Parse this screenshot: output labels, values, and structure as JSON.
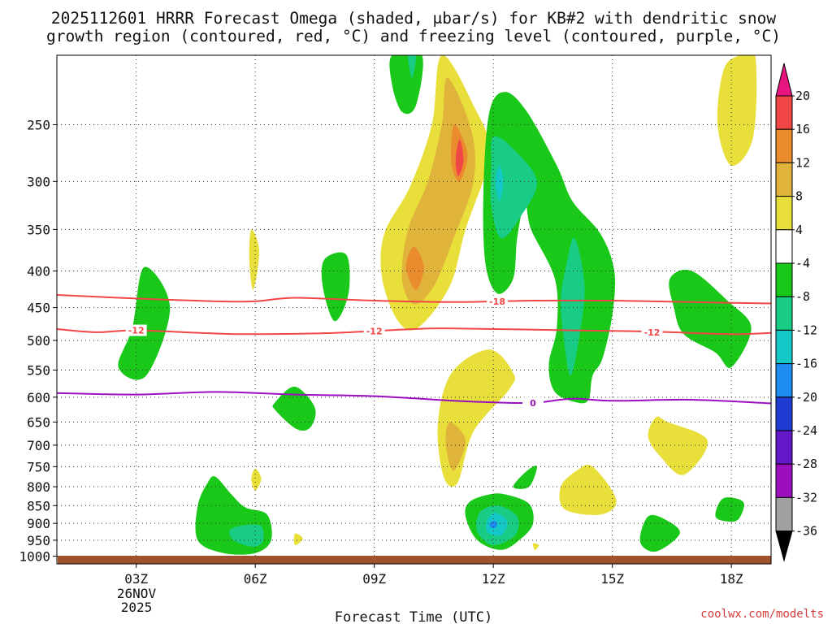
{
  "header": {
    "title_line1": "2025112601 HRRR Forecast Omega (shaded, μbar/s) for KB#2 with dendritic snow",
    "title_line2": "growth region (contoured, red, °C) and freezing level (contoured, purple, °C)"
  },
  "footer": {
    "xlabel": "Forecast Time (UTC)",
    "credit": "coolwx.com/modelts",
    "date_line1": "26NOV",
    "date_line2": "2025"
  },
  "chart_data": {
    "type": "heatmap",
    "title": "2025112601 HRRR Forecast Omega (shaded, μbar/s) for KB#2 with dendritic snow growth region (contoured, red, °C) and freezing level (contoured, purple, °C)",
    "xlabel": "Forecast Time (UTC)",
    "ylabel": "",
    "x_range_hours_utc": [
      1,
      19
    ],
    "x_ticks": [
      {
        "hour": 3,
        "label": "03Z"
      },
      {
        "hour": 6,
        "label": "06Z"
      },
      {
        "hour": 9,
        "label": "09Z"
      },
      {
        "hour": 12,
        "label": "12Z"
      },
      {
        "hour": 15,
        "label": "15Z"
      },
      {
        "hour": 18,
        "label": "18Z"
      }
    ],
    "y_axis": {
      "scale": "log",
      "range_mb": [
        200,
        1025
      ],
      "inverted": true
    },
    "y_ticks": [
      250,
      300,
      350,
      400,
      450,
      500,
      550,
      600,
      650,
      700,
      750,
      800,
      850,
      900,
      950,
      1000
    ],
    "grid": true,
    "colorbar": {
      "labels": [
        "20",
        "16",
        "12",
        "8",
        "4",
        "-4",
        "-8",
        "-12",
        "-16",
        "-20",
        "-24",
        "-28",
        "-32",
        "-36"
      ],
      "colors": [
        "#e7157f",
        "#f04646",
        "#ea8c2e",
        "#e0b43a",
        "#e8df3a",
        "#ffffff",
        "#19c819",
        "#19cc85",
        "#14c8c8",
        "#1e8cf0",
        "#1e3cd2",
        "#6419c8",
        "#9b0fbe",
        "#a0a0a0",
        "#000000"
      ]
    },
    "regions": [
      {
        "level": "4",
        "color": "#e8df3a",
        "points": [
          [
            10.7,
            200
          ],
          [
            11.5,
            235
          ],
          [
            11.9,
            275
          ],
          [
            11.3,
            350
          ],
          [
            10.9,
            420
          ],
          [
            10.1,
            480
          ],
          [
            9.6,
            470
          ],
          [
            9.2,
            410
          ],
          [
            9.25,
            355
          ],
          [
            9.9,
            305
          ],
          [
            10.45,
            250
          ]
        ]
      },
      {
        "level": "8",
        "color": "#e0b43a",
        "points": [
          [
            10.85,
            215
          ],
          [
            11.45,
            255
          ],
          [
            11.5,
            300
          ],
          [
            11.0,
            360
          ],
          [
            10.5,
            420
          ],
          [
            10.0,
            445
          ],
          [
            9.7,
            410
          ],
          [
            9.85,
            350
          ],
          [
            10.35,
            300
          ],
          [
            10.7,
            250
          ]
        ]
      },
      {
        "level": "12",
        "color": "#ea8c2e",
        "points": [
          [
            11.05,
            250
          ],
          [
            11.35,
            275
          ],
          [
            11.15,
            300
          ],
          [
            10.95,
            285
          ],
          [
            10.95,
            260
          ]
        ]
      },
      {
        "level": "12",
        "color": "#ea8c2e",
        "points": [
          [
            10.0,
            370
          ],
          [
            10.25,
            395
          ],
          [
            10.05,
            425
          ],
          [
            9.8,
            395
          ]
        ]
      },
      {
        "level": "16",
        "color": "#f04646",
        "points": [
          [
            11.15,
            262
          ],
          [
            11.25,
            280
          ],
          [
            11.12,
            295
          ],
          [
            11.05,
            280
          ]
        ]
      },
      {
        "level": "-4",
        "color": "#19c819",
        "points": [
          [
            9.45,
            200
          ],
          [
            10.2,
            200
          ],
          [
            10.05,
            235
          ],
          [
            9.7,
            240
          ],
          [
            9.45,
            220
          ]
        ]
      },
      {
        "level": "-8",
        "color": "#19cc85",
        "points": [
          [
            9.85,
            200
          ],
          [
            10.05,
            200
          ],
          [
            9.95,
            215
          ]
        ]
      },
      {
        "level": "-4",
        "color": "#19c819",
        "points": [
          [
            11.9,
            240
          ],
          [
            12.3,
            225
          ],
          [
            12.85,
            240
          ],
          [
            13.6,
            285
          ],
          [
            14.0,
            320
          ],
          [
            14.7,
            355
          ],
          [
            15.05,
            400
          ],
          [
            15.0,
            460
          ],
          [
            14.75,
            530
          ],
          [
            14.5,
            560
          ],
          [
            14.4,
            605
          ],
          [
            14.1,
            610
          ],
          [
            13.55,
            590
          ],
          [
            13.4,
            540
          ],
          [
            13.6,
            480
          ],
          [
            13.55,
            410
          ],
          [
            12.95,
            350
          ],
          [
            12.8,
            320
          ],
          [
            12.6,
            360
          ],
          [
            12.5,
            410
          ],
          [
            12.1,
            430
          ],
          [
            11.8,
            390
          ],
          [
            11.75,
            310
          ]
        ]
      },
      {
        "level": "-8",
        "color": "#19cc85",
        "points": [
          [
            12.0,
            260
          ],
          [
            12.5,
            270
          ],
          [
            13.1,
            300
          ],
          [
            12.7,
            335
          ],
          [
            12.2,
            360
          ],
          [
            11.95,
            325
          ],
          [
            11.95,
            285
          ]
        ]
      },
      {
        "level": "-12",
        "color": "#14c8c8",
        "points": [
          [
            12.15,
            285
          ],
          [
            12.25,
            300
          ],
          [
            12.15,
            320
          ],
          [
            12.05,
            300
          ]
        ]
      },
      {
        "level": "-8",
        "color": "#19cc85",
        "points": [
          [
            14.05,
            360
          ],
          [
            14.3,
            420
          ],
          [
            14.15,
            500
          ],
          [
            13.95,
            560
          ],
          [
            13.8,
            510
          ],
          [
            13.7,
            440
          ],
          [
            13.85,
            390
          ]
        ]
      },
      {
        "level": "-4",
        "color": "#19c819",
        "points": [
          [
            2.55,
            545
          ],
          [
            2.9,
            480
          ],
          [
            3.2,
            395
          ],
          [
            3.85,
            450
          ],
          [
            3.25,
            560
          ]
        ]
      },
      {
        "level": "4",
        "color": "#e8df3a",
        "points": [
          [
            5.9,
            350
          ],
          [
            6.1,
            375
          ],
          [
            5.95,
            425
          ],
          [
            5.85,
            385
          ]
        ]
      },
      {
        "level": "-4",
        "color": "#19c819",
        "points": [
          [
            7.75,
            385
          ],
          [
            8.3,
            380
          ],
          [
            8.35,
            430
          ],
          [
            8.0,
            470
          ],
          [
            7.7,
            420
          ]
        ]
      },
      {
        "level": "-4",
        "color": "#19c819",
        "points": [
          [
            6.5,
            610
          ],
          [
            7.0,
            580
          ],
          [
            7.5,
            620
          ],
          [
            7.4,
            660
          ],
          [
            7.05,
            665
          ],
          [
            6.5,
            625
          ]
        ]
      },
      {
        "level": "4",
        "color": "#e8df3a",
        "points": [
          [
            11.9,
            515
          ],
          [
            12.5,
            555
          ],
          [
            12.4,
            585
          ],
          [
            11.5,
            670
          ],
          [
            11.1,
            790
          ],
          [
            10.75,
            775
          ],
          [
            10.6,
            655
          ],
          [
            10.95,
            555
          ]
        ]
      },
      {
        "level": "8",
        "color": "#e0b43a",
        "points": [
          [
            10.9,
            650
          ],
          [
            11.3,
            690
          ],
          [
            11.0,
            760
          ],
          [
            10.8,
            700
          ]
        ]
      },
      {
        "level": "-4",
        "color": "#19c819",
        "points": [
          [
            12.85,
            760
          ],
          [
            13.1,
            750
          ],
          [
            12.9,
            800
          ],
          [
            12.5,
            800
          ]
        ]
      },
      {
        "level": "4",
        "color": "#e8df3a",
        "points": [
          [
            14.1,
            760
          ],
          [
            14.5,
            750
          ],
          [
            15.1,
            835
          ],
          [
            14.7,
            875
          ],
          [
            13.8,
            860
          ],
          [
            13.7,
            800
          ]
        ]
      },
      {
        "level": "4",
        "color": "#e8df3a",
        "points": [
          [
            16.1,
            640
          ],
          [
            16.4,
            650
          ],
          [
            17.4,
            690
          ],
          [
            16.8,
            770
          ],
          [
            16.2,
            725
          ],
          [
            15.9,
            680
          ]
        ]
      },
      {
        "level": "-4",
        "color": "#19c819",
        "points": [
          [
            5.0,
            775
          ],
          [
            5.4,
            820
          ],
          [
            5.75,
            855
          ],
          [
            6.3,
            875
          ],
          [
            6.4,
            950
          ],
          [
            6.0,
            990
          ],
          [
            5.2,
            990
          ],
          [
            4.55,
            950
          ],
          [
            4.55,
            850
          ],
          [
            4.8,
            790
          ]
        ]
      },
      {
        "level": "-8",
        "color": "#19cc85",
        "points": [
          [
            5.4,
            915
          ],
          [
            6.1,
            905
          ],
          [
            6.2,
            950
          ],
          [
            5.95,
            970
          ],
          [
            5.45,
            950
          ]
        ]
      },
      {
        "level": "4",
        "color": "#e8df3a",
        "points": [
          [
            6.0,
            755
          ],
          [
            6.15,
            780
          ],
          [
            6.0,
            810
          ],
          [
            5.9,
            780
          ]
        ]
      },
      {
        "level": "4",
        "color": "#e8df3a",
        "points": [
          [
            7.0,
            930
          ],
          [
            7.2,
            945
          ],
          [
            7.0,
            965
          ]
        ]
      },
      {
        "level": "-4",
        "color": "#19c819",
        "points": [
          [
            12.3,
            820
          ],
          [
            12.9,
            845
          ],
          [
            13.0,
            900
          ],
          [
            12.7,
            945
          ],
          [
            12.2,
            980
          ],
          [
            11.6,
            950
          ],
          [
            11.3,
            880
          ],
          [
            11.4,
            840
          ],
          [
            11.9,
            820
          ]
        ]
      },
      {
        "level": "-8",
        "color": "#19cc85",
        "points": [
          [
            12.1,
            850
          ],
          [
            12.6,
            880
          ],
          [
            12.55,
            935
          ],
          [
            12.0,
            965
          ],
          [
            11.6,
            925
          ],
          [
            11.65,
            870
          ]
        ]
      },
      {
        "level": "-12",
        "color": "#14c8c8",
        "points": [
          [
            12.05,
            870
          ],
          [
            12.35,
            895
          ],
          [
            12.2,
            935
          ],
          [
            11.85,
            925
          ],
          [
            11.85,
            890
          ]
        ]
      },
      {
        "level": "-16",
        "color": "#1e8cf0",
        "points": [
          [
            11.95,
            895
          ],
          [
            12.05,
            893
          ],
          [
            12.1,
            905
          ],
          [
            12.0,
            915
          ],
          [
            11.9,
            905
          ]
        ]
      },
      {
        "level": "4",
        "color": "#e8df3a",
        "points": [
          [
            13.0,
            960
          ],
          [
            13.15,
            965
          ],
          [
            13.05,
            980
          ]
        ]
      },
      {
        "level": "-4",
        "color": "#19c819",
        "points": [
          [
            15.9,
            880
          ],
          [
            16.35,
            890
          ],
          [
            16.7,
            930
          ],
          [
            16.1,
            985
          ],
          [
            15.7,
            955
          ]
        ]
      },
      {
        "level": "-4",
        "color": "#19c819",
        "points": [
          [
            17.8,
            830
          ],
          [
            18.3,
            840
          ],
          [
            18.2,
            885
          ],
          [
            17.95,
            895
          ],
          [
            17.6,
            880
          ]
        ]
      },
      {
        "level": "-4",
        "color": "#19c819",
        "points": [
          [
            16.45,
            410
          ],
          [
            17.0,
            400
          ],
          [
            17.9,
            440
          ],
          [
            18.5,
            480
          ],
          [
            18.0,
            545
          ],
          [
            17.6,
            520
          ],
          [
            16.8,
            490
          ],
          [
            16.55,
            450
          ]
        ]
      },
      {
        "level": "4",
        "color": "#e8df3a",
        "points": [
          [
            17.8,
            210
          ],
          [
            18.2,
            200
          ],
          [
            18.6,
            200
          ],
          [
            18.55,
            260
          ],
          [
            18.0,
            285
          ],
          [
            17.65,
            250
          ]
        ]
      }
    ],
    "contours": [
      {
        "name": "-18",
        "color": "#f04646",
        "label_hour": 12.1,
        "label": "-18",
        "x": [
          1,
          3,
          5,
          6,
          7,
          9,
          11,
          13,
          15,
          17,
          19
        ],
        "y": [
          432,
          437,
          441,
          441,
          436,
          440,
          442,
          440,
          440,
          442,
          444
        ]
      },
      {
        "name": "-12",
        "color": "#f04646",
        "label_hour": 9.0,
        "label": "-12",
        "x": [
          1,
          2,
          3,
          5,
          6,
          8,
          10,
          11,
          14,
          16,
          18,
          19
        ],
        "y": [
          482,
          487,
          484,
          489,
          490,
          488,
          482,
          481,
          484,
          486,
          490,
          488
        ]
      },
      {
        "name": "0",
        "color": "#9b0fbe",
        "label_hour": 13.0,
        "label": "0",
        "x": [
          1,
          3,
          5,
          7,
          9,
          11,
          12,
          13,
          14,
          15,
          17,
          19
        ],
        "y": [
          592,
          595,
          590,
          595,
          598,
          607,
          610,
          611,
          603,
          607,
          605,
          612
        ]
      }
    ],
    "annotations": [
      {
        "text": "-12",
        "hour": 3.0,
        "mb": 484,
        "color": "#f04646"
      },
      {
        "text": "-12",
        "hour": 16.0,
        "mb": 487,
        "color": "#f04646"
      }
    ]
  }
}
